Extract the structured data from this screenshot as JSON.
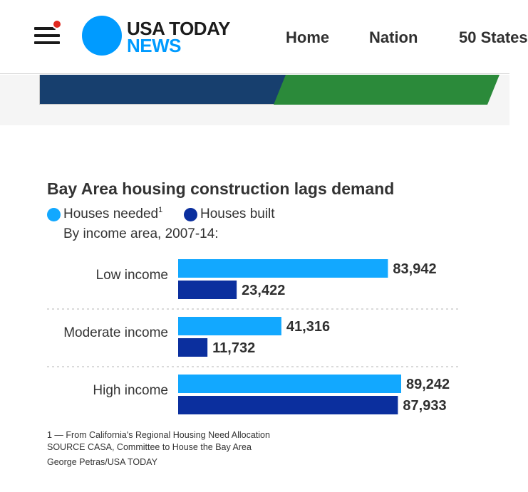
{
  "header": {
    "logo_line1": "USA TODAY",
    "logo_line2": "NEWS",
    "nav": [
      "Home",
      "Nation",
      "50 States"
    ]
  },
  "colors": {
    "brand_blue": "#009bff",
    "needed": "#12a8ff",
    "built": "#0b2f9e",
    "notification": "#e0281f"
  },
  "chart": {
    "title": "Bay Area housing construction lags demand",
    "legend_needed": "Houses needed",
    "legend_needed_sup": "1",
    "legend_built": "Houses built",
    "subtitle": "By income area, 2007-14:"
  },
  "chart_data": {
    "type": "bar",
    "orientation": "horizontal",
    "title": "Bay Area housing construction lags demand",
    "subtitle": "By income area, 2007-14:",
    "categories": [
      "Low income",
      "Moderate income",
      "High income"
    ],
    "series": [
      {
        "name": "Houses needed",
        "values": [
          83942,
          41316,
          89242
        ],
        "labels": [
          "83,942",
          "41,316",
          "89,242"
        ]
      },
      {
        "name": "Houses built",
        "values": [
          23422,
          11732,
          87933
        ],
        "labels": [
          "23,422",
          "11,732",
          "87,933"
        ]
      }
    ],
    "xlim": [
      0,
      89242
    ],
    "legend": "top-left"
  },
  "footnotes": {
    "note1": "1 — From California's Regional Housing Need Allocation",
    "source": "SOURCE CASA, Committee to House the Bay Area",
    "credit": "George Petras/USA TODAY"
  }
}
